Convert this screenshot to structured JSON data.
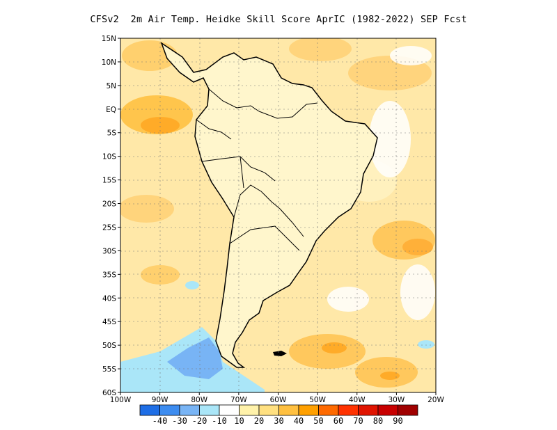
{
  "title": "CFSv2  2m Air Temp. Heidke Skill Score AprIC (1982-2022) SEP Fcst",
  "map": {
    "lat_labels": [
      "15N",
      "10N",
      "5N",
      "EQ",
      "5S",
      "10S",
      "15S",
      "20S",
      "25S",
      "30S",
      "35S",
      "40S",
      "45S",
      "50S",
      "55S",
      "60S"
    ],
    "lon_labels": [
      "100W",
      "90W",
      "80W",
      "70W",
      "60W",
      "50W",
      "40W",
      "30W",
      "20W"
    ],
    "lat_range": [
      -60,
      15
    ],
    "lon_range": [
      -100,
      -20
    ],
    "gridlines": true,
    "ocean_color": "#ffe8a8",
    "land_color": "#fff6cc"
  },
  "colorbar": {
    "labels": [
      "-40",
      "-30",
      "-20",
      "-10",
      "10",
      "20",
      "30",
      "40",
      "50",
      "60",
      "70",
      "80",
      "90"
    ],
    "colors": [
      "#1e6ee6",
      "#3c8cf0",
      "#78b4f5",
      "#aae6f8",
      "#ffffff",
      "#fff2aa",
      "#ffe080",
      "#ffc040",
      "#ffa000",
      "#ff6a00",
      "#ff3200",
      "#e01400",
      "#c80000",
      "#a00000"
    ]
  }
}
